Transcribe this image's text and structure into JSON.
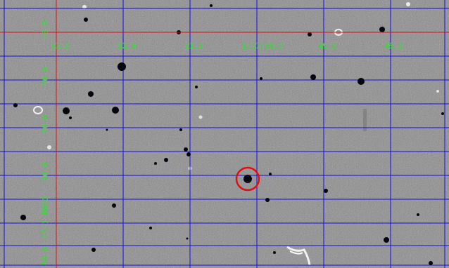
{
  "overlay": {
    "ra_labels": [
      "53.0",
      "52.0",
      "51.0",
      "1:17:50.0",
      "49.0",
      "48.0"
    ],
    "dec_labels": [
      "40.0",
      "30.0",
      "20.0",
      "10.0",
      "0.0",
      "-15:1:50.0",
      "50.0"
    ],
    "colors": {
      "sky_background": "#8a8a8a",
      "grid_line": "#1010e0",
      "axis_line": "#e01010",
      "label": "#30e030",
      "target_marker": "#e01010",
      "star": "#050510"
    }
  }
}
